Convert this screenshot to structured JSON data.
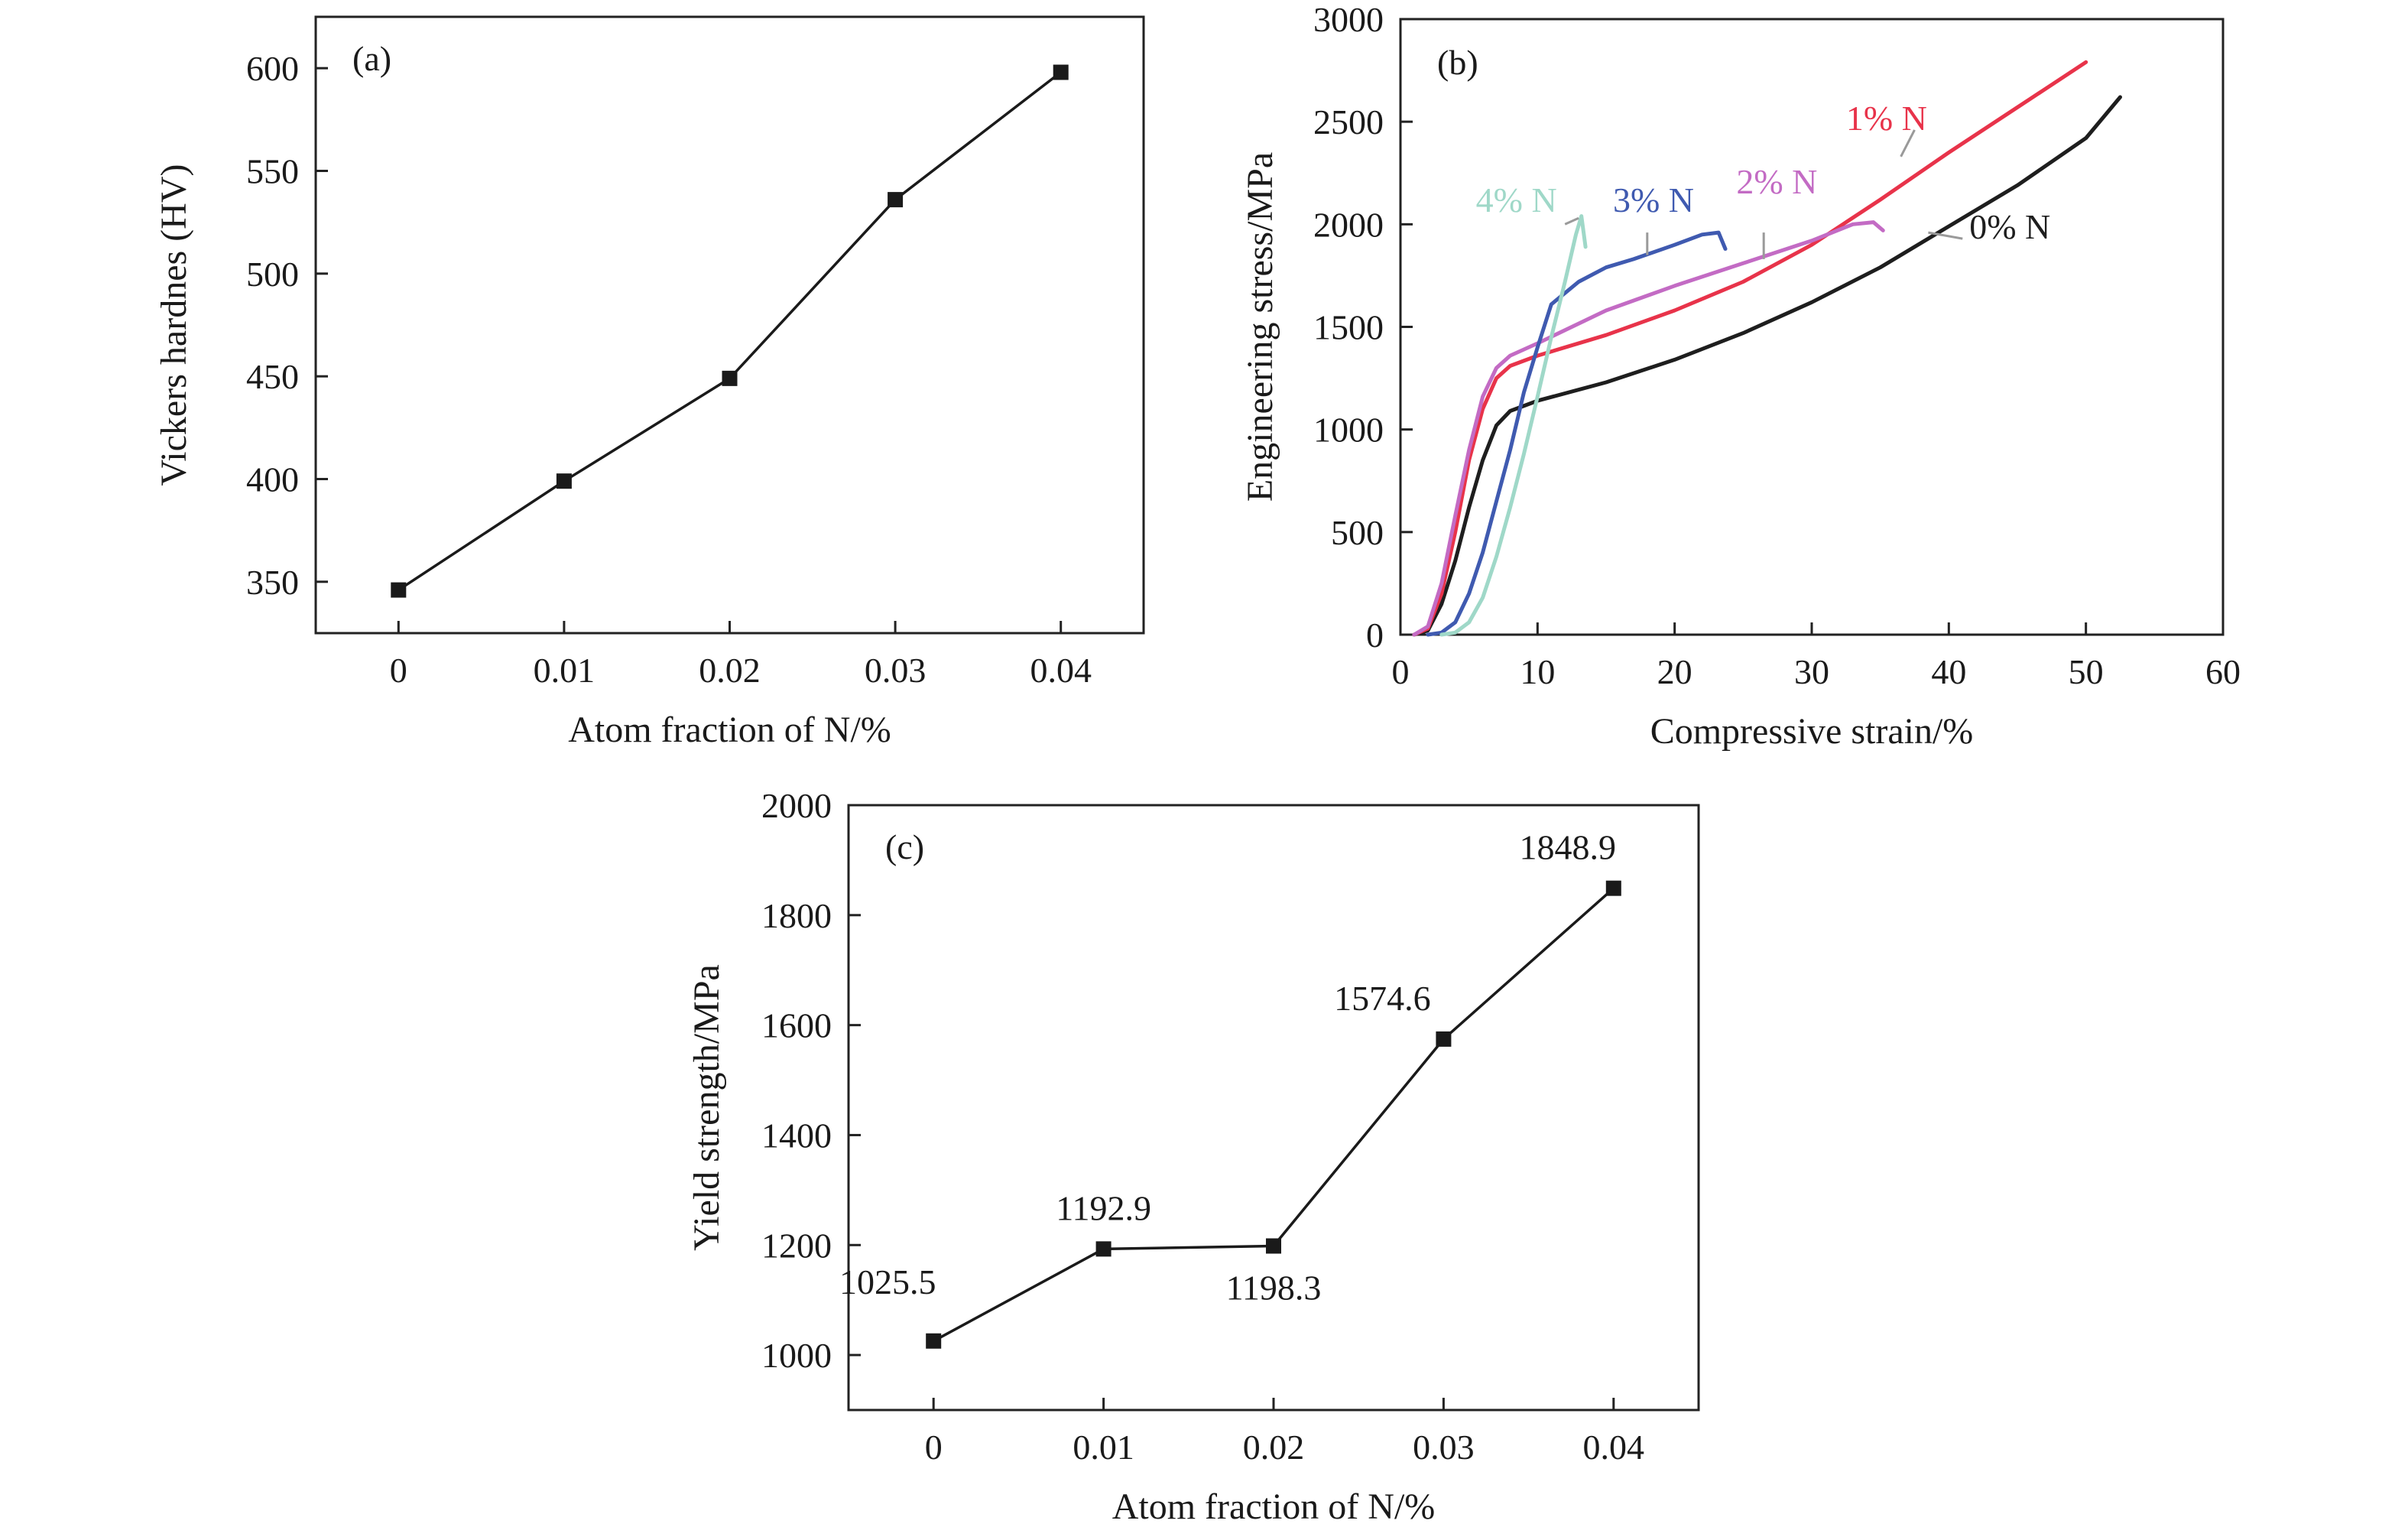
{
  "chart_data": [
    {
      "panel": "(a)",
      "type": "line",
      "xlabel": "Atom fraction of N/%",
      "ylabel": "Vickers hardnes (HV)",
      "x": [
        "0",
        "0.01",
        "0.02",
        "0.03",
        "0.04"
      ],
      "values": [
        346,
        399,
        449,
        536,
        598
      ],
      "xlim": [
        -0.005,
        0.045
      ],
      "ylim": [
        325,
        625
      ],
      "yticks": [
        "350",
        "400",
        "450",
        "500",
        "550",
        "600"
      ],
      "marker": "square",
      "color": "#1a1a1a"
    },
    {
      "panel": "(b)",
      "type": "line",
      "xlabel": "Compressive strain/%",
      "ylabel": "Engineering stress/MPa",
      "xlim": [
        0,
        60
      ],
      "ylim": [
        0,
        3000
      ],
      "xticks": [
        "0",
        "10",
        "20",
        "30",
        "40",
        "50",
        "60"
      ],
      "yticks": [
        "0",
        "500",
        "1000",
        "1500",
        "2000",
        "2500",
        "3000"
      ],
      "series": [
        {
          "name": "0% N",
          "color": "#1e1e1e",
          "points": [
            [
              1,
              0
            ],
            [
              2,
              20
            ],
            [
              3,
              150
            ],
            [
              4,
              360
            ],
            [
              5,
              620
            ],
            [
              6,
              850
            ],
            [
              7,
              1020
            ],
            [
              8,
              1090
            ],
            [
              10,
              1140
            ],
            [
              15,
              1230
            ],
            [
              20,
              1340
            ],
            [
              25,
              1470
            ],
            [
              30,
              1620
            ],
            [
              35,
              1790
            ],
            [
              40,
              1990
            ],
            [
              45,
              2190
            ],
            [
              50,
              2420
            ],
            [
              52.5,
              2620
            ]
          ]
        },
        {
          "name": "1% N",
          "color": "#e8334a",
          "points": [
            [
              1,
              0
            ],
            [
              2,
              30
            ],
            [
              3,
              200
            ],
            [
              4,
              500
            ],
            [
              5,
              850
            ],
            [
              6,
              1100
            ],
            [
              7,
              1250
            ],
            [
              8,
              1310
            ],
            [
              10,
              1360
            ],
            [
              15,
              1460
            ],
            [
              20,
              1580
            ],
            [
              25,
              1720
            ],
            [
              30,
              1900
            ],
            [
              35,
              2120
            ],
            [
              40,
              2350
            ],
            [
              45,
              2570
            ],
            [
              50,
              2790
            ]
          ]
        },
        {
          "name": "2% N",
          "color": "#c36bc4",
          "points": [
            [
              1,
              0
            ],
            [
              2,
              40
            ],
            [
              3,
              250
            ],
            [
              4,
              580
            ],
            [
              5,
              900
            ],
            [
              6,
              1160
            ],
            [
              7,
              1300
            ],
            [
              8,
              1360
            ],
            [
              10,
              1420
            ],
            [
              15,
              1580
            ],
            [
              20,
              1700
            ],
            [
              25,
              1810
            ],
            [
              30,
              1920
            ],
            [
              33,
              2000
            ],
            [
              34.5,
              2010
            ],
            [
              35.2,
              1970
            ]
          ]
        },
        {
          "name": "3% N",
          "color": "#3f5ab0",
          "points": [
            [
              2,
              0
            ],
            [
              3,
              10
            ],
            [
              4,
              60
            ],
            [
              5,
              200
            ],
            [
              6,
              400
            ],
            [
              7,
              650
            ],
            [
              8,
              900
            ],
            [
              9,
              1180
            ],
            [
              10,
              1400
            ],
            [
              11,
              1610
            ],
            [
              13,
              1720
            ],
            [
              15,
              1790
            ],
            [
              17,
              1830
            ],
            [
              20,
              1900
            ],
            [
              22,
              1950
            ],
            [
              23.2,
              1960
            ],
            [
              23.7,
              1880
            ]
          ]
        },
        {
          "name": "4% N",
          "color": "#9fd8c8",
          "points": [
            [
              3,
              0
            ],
            [
              4,
              10
            ],
            [
              5,
              60
            ],
            [
              6,
              180
            ],
            [
              7,
              380
            ],
            [
              8,
              620
            ],
            [
              9,
              880
            ],
            [
              10,
              1160
            ],
            [
              11,
              1450
            ],
            [
              12,
              1720
            ],
            [
              12.8,
              1950
            ],
            [
              13.2,
              2040
            ],
            [
              13.5,
              1890
            ]
          ]
        }
      ],
      "series_labels": [
        {
          "text": "0% N",
          "x": 41.5,
          "y": 1930,
          "leader": [
            [
              38.5,
              1960
            ],
            [
              41,
              1930
            ]
          ]
        },
        {
          "text": "1% N",
          "x": 32.5,
          "y": 2460,
          "leader": [
            [
              36.5,
              2330
            ],
            [
              37.5,
              2460
            ]
          ]
        },
        {
          "text": "2% N",
          "x": 24.5,
          "y": 2150,
          "leader": [
            [
              26.5,
              1830
            ],
            [
              26.5,
              1960
            ]
          ]
        },
        {
          "text": "3% N",
          "x": 15.5,
          "y": 2060,
          "leader": [
            [
              18,
              1850
            ],
            [
              18,
              1960
            ]
          ]
        },
        {
          "text": "4% N",
          "x": 5.5,
          "y": 2060,
          "leader": [
            [
              12,
              2000
            ],
            [
              13,
              2030
            ]
          ]
        }
      ]
    },
    {
      "panel": "(c)",
      "type": "line",
      "xlabel": "Atom fraction of N/%",
      "ylabel": "Yield strength/MPa",
      "x": [
        "0",
        "0.01",
        "0.02",
        "0.03",
        "0.04"
      ],
      "values": [
        1025.5,
        1192.9,
        1198.3,
        1574.6,
        1848.9
      ],
      "data_labels": [
        "1025.5",
        "1192.9",
        "1198.3",
        "1574.6",
        "1848.9"
      ],
      "xlim": [
        -0.005,
        0.045
      ],
      "ylim": [
        900,
        2000
      ],
      "yticks": [
        "1000",
        "1200",
        "1400",
        "1600",
        "1800",
        "2000"
      ],
      "marker": "square",
      "color": "#1a1a1a"
    }
  ]
}
